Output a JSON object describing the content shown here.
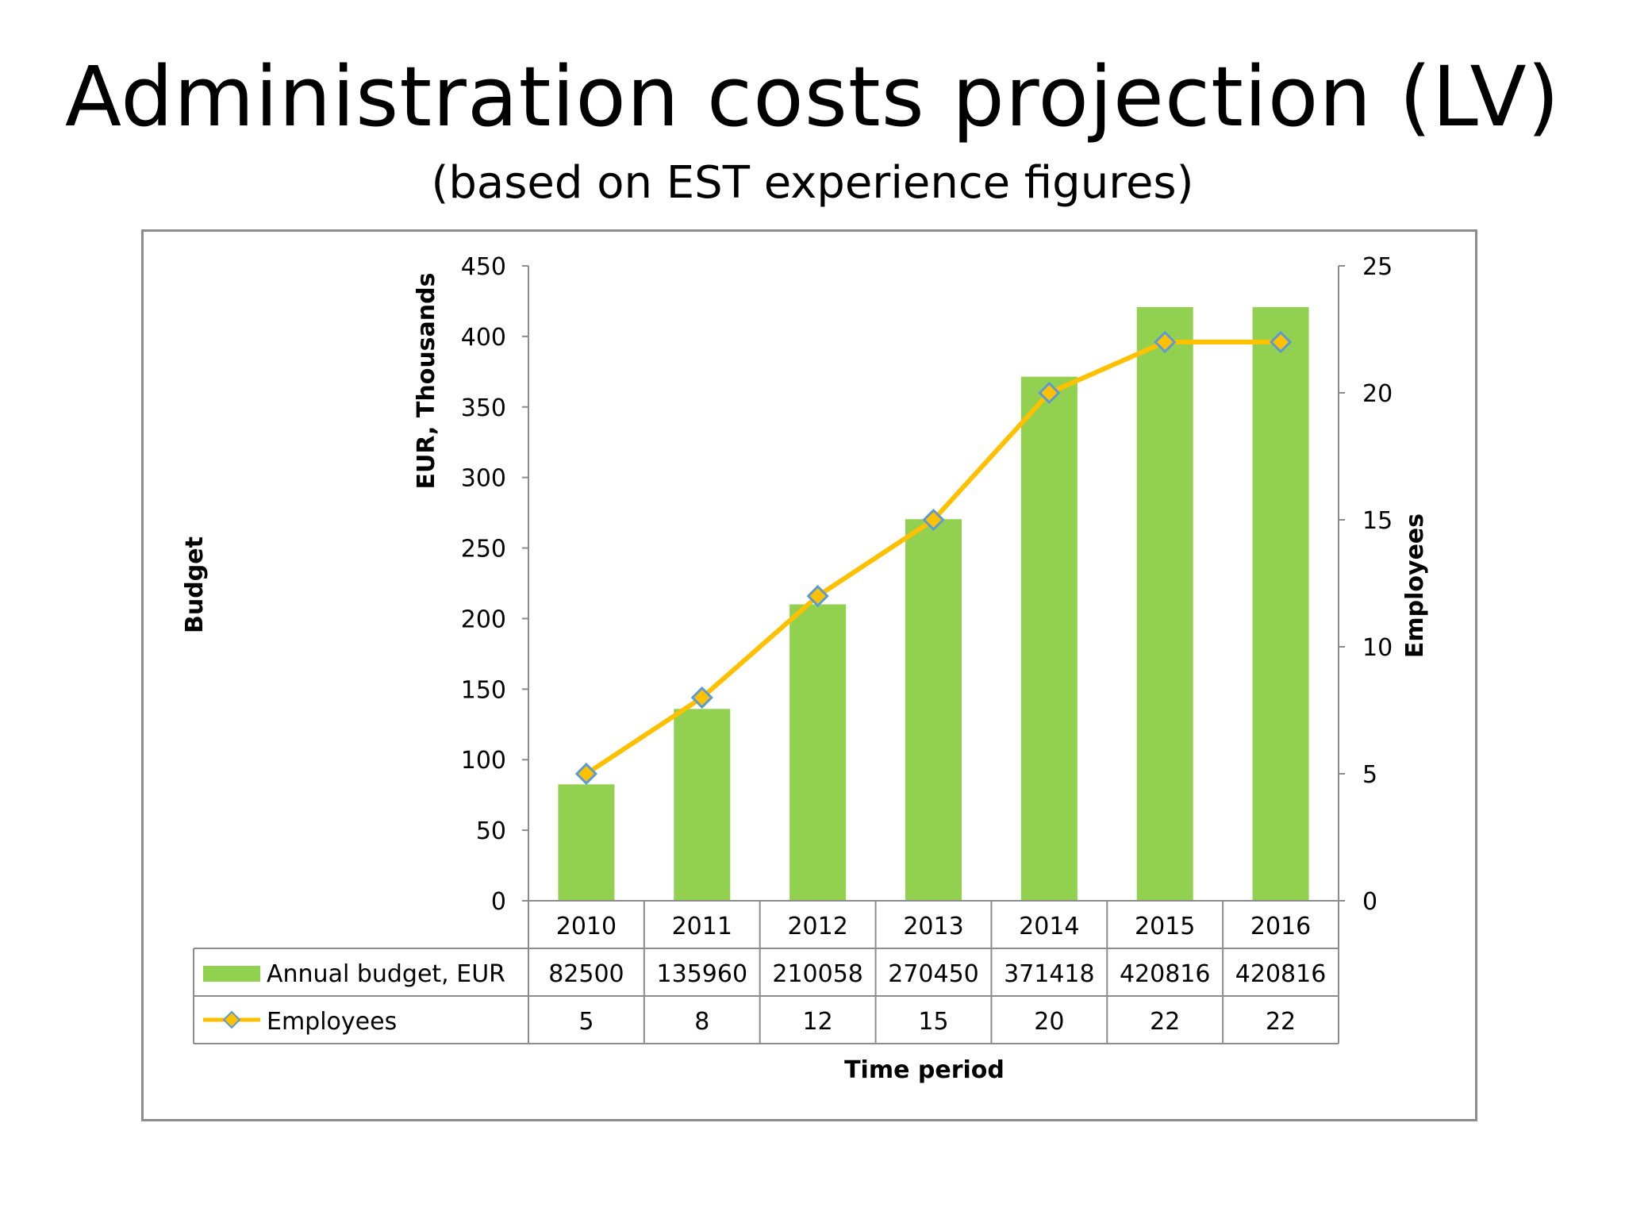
{
  "title": "Administration costs projection (LV)",
  "subtitle": "(based on EST experience figures)",
  "colors": {
    "bar": "#92d050",
    "line": "#ffc000",
    "marker_fill": "#ffc000",
    "marker_stroke": "#5b9bd5",
    "axis": "#8c8c8c",
    "frame": "#8c8c8c"
  },
  "chart_data": {
    "type": "bar",
    "categories": [
      "2010",
      "2011",
      "2012",
      "2013",
      "2014",
      "2015",
      "2016"
    ],
    "series": [
      {
        "name": "Annual budget, EUR",
        "type": "bar",
        "axis": "left",
        "values": [
          82500,
          135960,
          210058,
          270450,
          371418,
          420816,
          420816
        ]
      },
      {
        "name": "Employees",
        "type": "line",
        "axis": "right",
        "marker": "diamond",
        "values": [
          5,
          8,
          12,
          15,
          20,
          22,
          22
        ]
      }
    ],
    "left_axis": {
      "label_outer": "Budget",
      "label_inner": "EUR, Thousands",
      "unit_divisor": 1000,
      "ylim": [
        0,
        450
      ],
      "ticks": [
        "0",
        "50",
        "100",
        "150",
        "200",
        "250",
        "300",
        "350",
        "400",
        "450"
      ]
    },
    "right_axis": {
      "label": "Employees",
      "ylim": [
        0,
        25
      ],
      "ticks": [
        "0",
        "5",
        "10",
        "15",
        "20",
        "25"
      ]
    },
    "xlabel": "Time period",
    "data_table": true,
    "grid": false
  }
}
